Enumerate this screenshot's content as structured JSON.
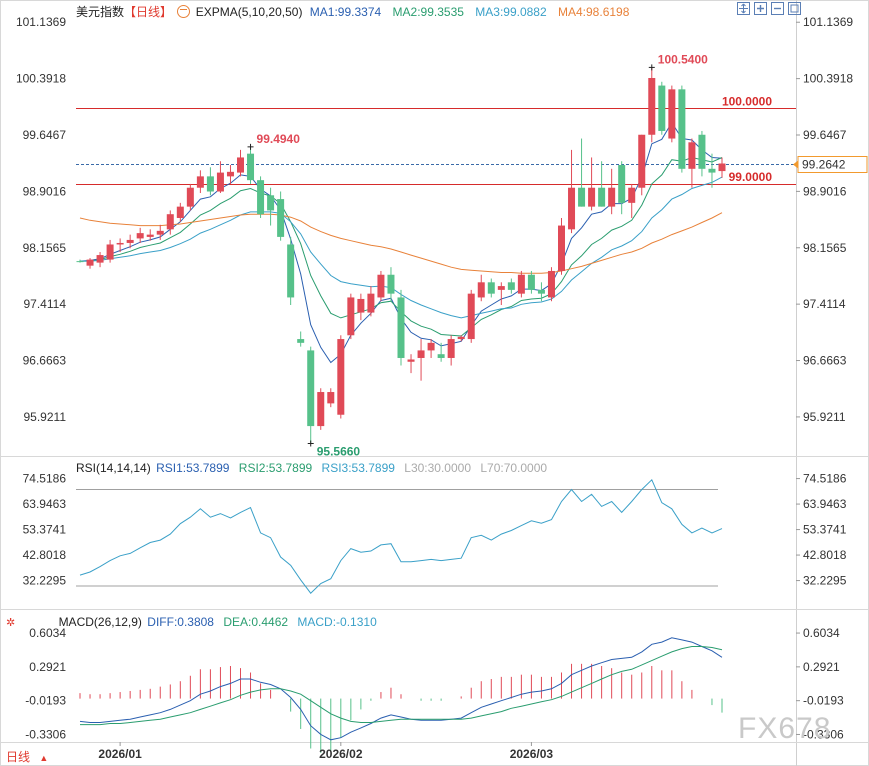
{
  "header": {
    "symbol": "美元指数",
    "period_bracket": "【日线】",
    "indicator": "EXPMA(5,10,20,50)",
    "ma1": "MA1:99.3374",
    "ma2": "MA2:99.3535",
    "ma3": "MA3:99.0882",
    "ma4": "MA4:98.6198"
  },
  "rsi_header": {
    "name": "RSI(14,14,14)",
    "rsi1": "RSI1:53.7899",
    "rsi2": "RSI2:53.7899",
    "rsi3": "RSI3:53.7899",
    "l30": "L30:30.0000",
    "l70": "L70:70.0000"
  },
  "macd_header": {
    "name": "MACD(26,12,9)",
    "diff": "DIFF:0.3808",
    "dea": "DEA:0.4462",
    "macd": "MACD:-0.1310"
  },
  "price_axis": [
    "101.1369",
    "100.3918",
    "99.6467",
    "98.9016",
    "98.1565",
    "97.4114",
    "96.6663",
    "95.9211"
  ],
  "rsi_axis": [
    "74.5186",
    "63.9463",
    "53.3741",
    "42.8018",
    "32.2295"
  ],
  "macd_axis": [
    "0.6034",
    "0.2921",
    "-0.0193",
    "-0.3306"
  ],
  "date_labels": [
    "2026/01",
    "2026/02",
    "2026/03"
  ],
  "annotations": {
    "high_label": "100.5400",
    "mid_high_label": "99.4940",
    "low_label": "95.5660",
    "line_100": "100.0000",
    "line_99": "99.0000",
    "last_price": "99.2642"
  },
  "footer": {
    "period_button": "日线",
    "watermark": "FX678"
  },
  "colors": {
    "up": "#e04a57",
    "down": "#56c18a",
    "ma1": "#2a5fb0",
    "ma2": "#2a9d6f",
    "ma3": "#3aa0c8",
    "ma4": "#e8823a",
    "hline": "#d62b2b",
    "last_price_box": "#f29a2e"
  },
  "chart_data": {
    "type": "candlestick",
    "candles": [
      {
        "o": 97.98,
        "h": 98.0,
        "l": 97.96,
        "c": 97.97
      },
      {
        "o": 97.92,
        "h": 98.02,
        "l": 97.88,
        "c": 98.0
      },
      {
        "o": 97.96,
        "h": 98.1,
        "l": 97.9,
        "c": 98.06
      },
      {
        "o": 98.0,
        "h": 98.26,
        "l": 97.96,
        "c": 98.2
      },
      {
        "o": 98.2,
        "h": 98.28,
        "l": 98.1,
        "c": 98.22
      },
      {
        "o": 98.22,
        "h": 98.33,
        "l": 98.15,
        "c": 98.26
      },
      {
        "o": 98.28,
        "h": 98.42,
        "l": 98.22,
        "c": 98.35
      },
      {
        "o": 98.3,
        "h": 98.4,
        "l": 98.25,
        "c": 98.33
      },
      {
        "o": 98.33,
        "h": 98.46,
        "l": 98.26,
        "c": 98.38
      },
      {
        "o": 98.4,
        "h": 98.65,
        "l": 98.33,
        "c": 98.6
      },
      {
        "o": 98.55,
        "h": 98.75,
        "l": 98.5,
        "c": 98.7
      },
      {
        "o": 98.7,
        "h": 99.0,
        "l": 98.65,
        "c": 98.95
      },
      {
        "o": 98.95,
        "h": 99.18,
        "l": 98.88,
        "c": 99.1
      },
      {
        "o": 99.1,
        "h": 99.22,
        "l": 98.85,
        "c": 98.9
      },
      {
        "o": 98.9,
        "h": 99.3,
        "l": 98.88,
        "c": 99.15
      },
      {
        "o": 99.1,
        "h": 99.25,
        "l": 99.0,
        "c": 99.16
      },
      {
        "o": 99.15,
        "h": 99.45,
        "l": 99.1,
        "c": 99.35
      },
      {
        "o": 99.4,
        "h": 99.49,
        "l": 99.0,
        "c": 99.05
      },
      {
        "o": 99.05,
        "h": 99.1,
        "l": 98.55,
        "c": 98.6
      },
      {
        "o": 98.85,
        "h": 98.95,
        "l": 98.45,
        "c": 98.65
      },
      {
        "o": 98.8,
        "h": 98.9,
        "l": 98.25,
        "c": 98.3
      },
      {
        "o": 98.2,
        "h": 98.3,
        "l": 97.4,
        "c": 97.5
      },
      {
        "o": 96.95,
        "h": 97.05,
        "l": 96.85,
        "c": 96.9
      },
      {
        "o": 96.8,
        "h": 96.85,
        "l": 95.57,
        "c": 95.8
      },
      {
        "o": 95.8,
        "h": 96.3,
        "l": 95.75,
        "c": 96.25
      },
      {
        "o": 96.1,
        "h": 96.3,
        "l": 96.05,
        "c": 96.25
      },
      {
        "o": 95.95,
        "h": 97.0,
        "l": 95.9,
        "c": 96.95
      },
      {
        "o": 97.0,
        "h": 97.55,
        "l": 96.95,
        "c": 97.5
      },
      {
        "o": 97.3,
        "h": 97.55,
        "l": 97.2,
        "c": 97.48
      },
      {
        "o": 97.3,
        "h": 97.65,
        "l": 97.25,
        "c": 97.55
      },
      {
        "o": 97.5,
        "h": 97.85,
        "l": 97.45,
        "c": 97.8
      },
      {
        "o": 97.8,
        "h": 97.9,
        "l": 97.45,
        "c": 97.55
      },
      {
        "o": 97.5,
        "h": 97.6,
        "l": 96.6,
        "c": 96.7
      },
      {
        "o": 96.65,
        "h": 96.75,
        "l": 96.5,
        "c": 96.68
      },
      {
        "o": 96.7,
        "h": 96.95,
        "l": 96.4,
        "c": 96.8
      },
      {
        "o": 96.8,
        "h": 96.95,
        "l": 96.7,
        "c": 96.9
      },
      {
        "o": 96.75,
        "h": 96.9,
        "l": 96.65,
        "c": 96.7
      },
      {
        "o": 96.7,
        "h": 97.0,
        "l": 96.6,
        "c": 96.95
      },
      {
        "o": 96.95,
        "h": 97.0,
        "l": 96.92,
        "c": 96.98
      },
      {
        "o": 96.95,
        "h": 97.6,
        "l": 96.9,
        "c": 97.55
      },
      {
        "o": 97.5,
        "h": 97.8,
        "l": 97.45,
        "c": 97.7
      },
      {
        "o": 97.7,
        "h": 97.75,
        "l": 97.5,
        "c": 97.55
      },
      {
        "o": 97.6,
        "h": 97.7,
        "l": 97.4,
        "c": 97.65
      },
      {
        "o": 97.7,
        "h": 97.75,
        "l": 97.55,
        "c": 97.6
      },
      {
        "o": 97.55,
        "h": 97.85,
        "l": 97.5,
        "c": 97.8
      },
      {
        "o": 97.8,
        "h": 97.85,
        "l": 97.55,
        "c": 97.6
      },
      {
        "o": 97.6,
        "h": 97.7,
        "l": 97.45,
        "c": 97.55
      },
      {
        "o": 97.5,
        "h": 97.9,
        "l": 97.45,
        "c": 97.85
      },
      {
        "o": 97.85,
        "h": 98.55,
        "l": 97.8,
        "c": 98.45
      },
      {
        "o": 98.4,
        "h": 99.45,
        "l": 98.35,
        "c": 98.95
      },
      {
        "o": 98.95,
        "h": 99.6,
        "l": 98.7,
        "c": 98.7
      },
      {
        "o": 98.7,
        "h": 99.35,
        "l": 98.65,
        "c": 98.95
      },
      {
        "o": 98.95,
        "h": 99.3,
        "l": 98.7,
        "c": 98.7
      },
      {
        "o": 98.7,
        "h": 99.2,
        "l": 98.6,
        "c": 98.95
      },
      {
        "o": 99.25,
        "h": 99.3,
        "l": 98.6,
        "c": 98.75
      },
      {
        "o": 98.75,
        "h": 99.0,
        "l": 98.55,
        "c": 98.95
      },
      {
        "o": 98.95,
        "h": 99.65,
        "l": 98.85,
        "c": 99.65
      },
      {
        "o": 99.65,
        "h": 100.54,
        "l": 99.55,
        "c": 100.4
      },
      {
        "o": 100.3,
        "h": 100.35,
        "l": 99.65,
        "c": 99.7
      },
      {
        "o": 99.6,
        "h": 100.3,
        "l": 99.55,
        "c": 100.25
      },
      {
        "o": 100.25,
        "h": 100.3,
        "l": 99.15,
        "c": 99.2
      },
      {
        "o": 99.2,
        "h": 99.6,
        "l": 98.95,
        "c": 99.55
      },
      {
        "o": 99.65,
        "h": 99.7,
        "l": 99.1,
        "c": 99.2
      },
      {
        "o": 99.2,
        "h": 99.4,
        "l": 98.95,
        "c": 99.15
      },
      {
        "o": 99.17,
        "h": 99.35,
        "l": 99.08,
        "c": 99.27
      }
    ],
    "ma_series": [
      {
        "name": "MA1",
        "values": [
          97.98,
          97.99,
          98.01,
          98.07,
          98.12,
          98.17,
          98.23,
          98.26,
          98.3,
          98.4,
          98.5,
          98.65,
          98.8,
          98.83,
          98.94,
          99.01,
          99.12,
          99.1,
          98.93,
          98.84,
          98.66,
          98.27,
          97.81,
          97.14,
          96.84,
          96.64,
          96.75,
          97.0,
          97.16,
          97.29,
          97.46,
          97.49,
          97.22,
          97.04,
          96.96,
          96.94,
          96.86,
          96.89,
          96.92,
          97.13,
          97.32,
          97.4,
          97.48,
          97.52,
          97.61,
          97.61,
          97.59,
          97.68,
          97.94,
          98.28,
          98.42,
          98.6,
          98.63,
          98.74,
          98.74,
          98.81,
          99.09,
          99.53,
          99.59,
          99.81,
          99.6,
          99.58,
          99.45,
          99.35,
          99.34
        ]
      },
      {
        "name": "MA2",
        "values": [
          97.98,
          97.98,
          98.0,
          98.04,
          98.07,
          98.11,
          98.16,
          98.19,
          98.22,
          98.29,
          98.36,
          98.47,
          98.59,
          98.65,
          98.74,
          98.81,
          98.91,
          98.94,
          98.88,
          98.84,
          98.74,
          98.5,
          98.21,
          97.79,
          97.52,
          97.29,
          97.23,
          97.27,
          97.31,
          97.35,
          97.43,
          97.45,
          97.31,
          97.19,
          97.12,
          97.08,
          97.01,
          97.0,
          96.99,
          97.1,
          97.21,
          97.27,
          97.34,
          97.38,
          97.46,
          97.48,
          97.49,
          97.55,
          97.71,
          97.93,
          98.05,
          98.2,
          98.28,
          98.39,
          98.44,
          98.52,
          98.72,
          99.0,
          99.12,
          99.32,
          99.3,
          99.35,
          99.32,
          99.29,
          99.35
        ]
      },
      {
        "name": "MA3",
        "values": [
          97.98,
          97.98,
          97.99,
          98.01,
          98.03,
          98.05,
          98.08,
          98.1,
          98.12,
          98.16,
          98.21,
          98.27,
          98.35,
          98.4,
          98.46,
          98.52,
          98.59,
          98.63,
          98.63,
          98.63,
          98.61,
          98.5,
          98.34,
          98.1,
          97.94,
          97.79,
          97.71,
          97.68,
          97.66,
          97.64,
          97.65,
          97.63,
          97.54,
          97.46,
          97.4,
          97.35,
          97.3,
          97.26,
          97.23,
          97.26,
          97.29,
          97.32,
          97.35,
          97.36,
          97.41,
          97.43,
          97.44,
          97.48,
          97.58,
          97.73,
          97.84,
          97.95,
          98.03,
          98.13,
          98.18,
          98.25,
          98.37,
          98.55,
          98.66,
          98.8,
          98.86,
          98.94,
          98.98,
          99.02,
          99.09
        ]
      },
      {
        "name": "MA4",
        "values": [
          98.55,
          98.52,
          98.5,
          98.48,
          98.47,
          98.46,
          98.45,
          98.45,
          98.45,
          98.46,
          98.47,
          98.49,
          98.51,
          98.53,
          98.55,
          98.57,
          98.59,
          98.6,
          98.6,
          98.6,
          98.59,
          98.56,
          98.51,
          98.43,
          98.37,
          98.32,
          98.28,
          98.25,
          98.22,
          98.19,
          98.17,
          98.14,
          98.1,
          98.06,
          98.02,
          97.98,
          97.94,
          97.9,
          97.87,
          97.86,
          97.85,
          97.84,
          97.83,
          97.83,
          97.82,
          97.82,
          97.82,
          97.83,
          97.85,
          97.88,
          97.91,
          97.95,
          97.99,
          98.03,
          98.07,
          98.1,
          98.15,
          98.22,
          98.27,
          98.33,
          98.38,
          98.43,
          98.49,
          98.55,
          98.62
        ]
      }
    ],
    "horizontal_lines": [
      100.0,
      99.0
    ],
    "last_price": 99.2642,
    "y_range": [
      95.55,
      101.14
    ],
    "rsi": {
      "values": [
        34.5,
        35.8,
        38.0,
        40.5,
        42.5,
        43.5,
        45.8,
        48.0,
        49.0,
        51.5,
        55.8,
        58.5,
        62.0,
        58.5,
        60.0,
        58.2,
        60.5,
        62.5,
        52.0,
        50.0,
        42.0,
        38.5,
        32.5,
        27.0,
        31.0,
        33.0,
        40.5,
        45.5,
        44.0,
        44.5,
        47.0,
        47.5,
        40.0,
        40.0,
        40.5,
        41.0,
        40.5,
        41.0,
        41.5,
        50.0,
        51.0,
        49.0,
        51.5,
        53.0,
        55.0,
        57.0,
        56.0,
        57.5,
        65.0,
        70.0,
        65.0,
        68.0,
        63.0,
        65.0,
        60.5,
        65.0,
        70.0,
        74.0,
        64.5,
        62.0,
        55.5,
        52.0,
        54.0,
        52.0,
        53.79
      ],
      "l30": 30,
      "l70": 70,
      "y_range": [
        25,
        76
      ]
    },
    "macd": {
      "diff": [
        -0.21,
        -0.22,
        -0.22,
        -0.21,
        -0.2,
        -0.19,
        -0.17,
        -0.15,
        -0.13,
        -0.1,
        -0.06,
        -0.02,
        0.04,
        0.07,
        0.11,
        0.14,
        0.18,
        0.18,
        0.15,
        0.13,
        0.09,
        0.01,
        -0.1,
        -0.25,
        -0.33,
        -0.38,
        -0.36,
        -0.31,
        -0.27,
        -0.23,
        -0.18,
        -0.15,
        -0.17,
        -0.19,
        -0.2,
        -0.2,
        -0.2,
        -0.19,
        -0.18,
        -0.13,
        -0.08,
        -0.05,
        -0.02,
        0.01,
        0.04,
        0.06,
        0.07,
        0.09,
        0.14,
        0.22,
        0.26,
        0.3,
        0.33,
        0.36,
        0.37,
        0.38,
        0.43,
        0.5,
        0.52,
        0.56,
        0.54,
        0.52,
        0.48,
        0.44,
        0.38
      ],
      "dea": [
        -0.24,
        -0.24,
        -0.24,
        -0.23,
        -0.23,
        -0.22,
        -0.21,
        -0.2,
        -0.19,
        -0.17,
        -0.15,
        -0.13,
        -0.1,
        -0.07,
        -0.04,
        -0.01,
        0.03,
        0.06,
        0.08,
        0.09,
        0.09,
        0.07,
        0.04,
        -0.02,
        -0.08,
        -0.14,
        -0.18,
        -0.21,
        -0.22,
        -0.22,
        -0.21,
        -0.2,
        -0.19,
        -0.19,
        -0.19,
        -0.19,
        -0.19,
        -0.19,
        -0.19,
        -0.18,
        -0.16,
        -0.14,
        -0.12,
        -0.09,
        -0.07,
        -0.05,
        -0.03,
        -0.01,
        0.02,
        0.06,
        0.1,
        0.14,
        0.18,
        0.22,
        0.25,
        0.27,
        0.31,
        0.35,
        0.39,
        0.43,
        0.46,
        0.48,
        0.48,
        0.47,
        0.45
      ],
      "hist": [
        0.05,
        0.04,
        0.04,
        0.05,
        0.06,
        0.07,
        0.08,
        0.09,
        0.11,
        0.13,
        0.16,
        0.21,
        0.27,
        0.27,
        0.29,
        0.3,
        0.28,
        0.24,
        0.14,
        0.08,
        0.0,
        -0.12,
        -0.28,
        -0.46,
        -0.5,
        -0.48,
        -0.36,
        -0.2,
        -0.1,
        -0.02,
        0.06,
        0.1,
        0.04,
        0.0,
        -0.02,
        -0.02,
        -0.02,
        0.0,
        0.02,
        0.1,
        0.16,
        0.18,
        0.2,
        0.2,
        0.22,
        0.22,
        0.2,
        0.2,
        0.24,
        0.32,
        0.32,
        0.32,
        0.3,
        0.28,
        0.24,
        0.22,
        0.24,
        0.3,
        0.26,
        0.26,
        0.16,
        0.08,
        0.0,
        -0.06,
        -0.13
      ],
      "y_range": [
        -0.4,
        0.65
      ]
    }
  }
}
